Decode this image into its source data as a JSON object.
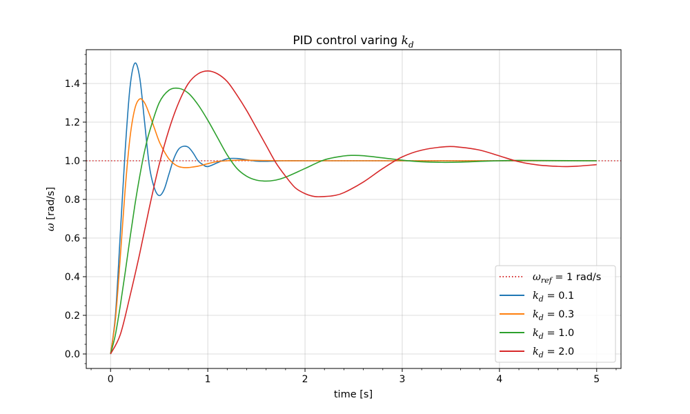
{
  "colors": {
    "ref": "#d62728",
    "s1": "#1f77b4",
    "s2": "#ff7f0e",
    "s3": "#2ca02c",
    "s4": "#d62728"
  },
  "chart_data": {
    "type": "line",
    "title_prefix": "PID control varing ",
    "title_var": "k",
    "title_sub": "d",
    "xlabel": "time [s]",
    "ylabel_symbol": "ω",
    "ylabel_unit": " [rad/s]",
    "xlim": [
      -0.25,
      5.25
    ],
    "ylim": [
      -0.075,
      1.575
    ],
    "x_ticks": [
      0,
      1,
      2,
      3,
      4,
      5
    ],
    "x_tick_labels": [
      "0",
      "1",
      "2",
      "3",
      "4",
      "5"
    ],
    "y_ticks": [
      0.0,
      0.2,
      0.4,
      0.6,
      0.8,
      1.0,
      1.2,
      1.4
    ],
    "y_tick_labels": [
      "0.0",
      "0.2",
      "0.4",
      "0.6",
      "0.8",
      "1.0",
      "1.2",
      "1.4"
    ],
    "grid": true,
    "legend_position": "lower-right",
    "reference": {
      "value": 1.0,
      "style": "dotted",
      "label_symbol": "ω",
      "label_sub": "ref",
      "label_rest": " = 1 rad/s"
    },
    "series": [
      {
        "label_symbol": "k",
        "label_sub": "d",
        "label_rest": " = 0.1",
        "x": [
          0,
          0.05,
          0.1,
          0.15,
          0.2,
          0.25,
          0.3,
          0.35,
          0.4,
          0.45,
          0.5,
          0.55,
          0.6,
          0.65,
          0.7,
          0.75,
          0.8,
          0.85,
          0.9,
          0.95,
          1.0,
          1.1,
          1.2,
          1.3,
          1.4,
          1.5,
          1.6,
          1.8,
          2.0,
          2.5,
          3.0,
          3.5,
          4.0,
          4.5,
          5.0
        ],
        "y": [
          0,
          0.2,
          0.62,
          1.05,
          1.38,
          1.505,
          1.43,
          1.2,
          0.97,
          0.86,
          0.82,
          0.85,
          0.93,
          1.01,
          1.06,
          1.075,
          1.07,
          1.04,
          1.0,
          0.98,
          0.97,
          0.99,
          1.01,
          1.012,
          1.005,
          0.998,
          0.997,
          1.0,
          1.0,
          1.0,
          1.0,
          1.0,
          1.0,
          1.0,
          1.0
        ]
      },
      {
        "label_symbol": "k",
        "label_sub": "d",
        "label_rest": " = 0.3",
        "x": [
          0,
          0.05,
          0.1,
          0.15,
          0.2,
          0.25,
          0.3,
          0.35,
          0.4,
          0.45,
          0.5,
          0.55,
          0.6,
          0.65,
          0.7,
          0.75,
          0.8,
          0.85,
          0.9,
          0.95,
          1.0,
          1.1,
          1.2,
          1.3,
          1.4,
          1.6,
          1.8,
          2.0,
          2.5,
          3.0,
          3.5,
          4.0,
          4.5,
          5.0
        ],
        "y": [
          0,
          0.18,
          0.5,
          0.85,
          1.12,
          1.27,
          1.32,
          1.3,
          1.24,
          1.17,
          1.1,
          1.05,
          1.01,
          0.985,
          0.97,
          0.965,
          0.965,
          0.968,
          0.972,
          0.978,
          0.985,
          0.996,
          1.0,
          1.003,
          1.003,
          1.001,
          1.0,
          1.0,
          1.0,
          1.0,
          1.0,
          1.0,
          1.0,
          1.0
        ]
      },
      {
        "label_symbol": "k",
        "label_sub": "d",
        "label_rest": " = 1.0",
        "x": [
          0,
          0.05,
          0.1,
          0.15,
          0.2,
          0.25,
          0.3,
          0.35,
          0.4,
          0.5,
          0.6,
          0.7,
          0.8,
          0.9,
          1.0,
          1.1,
          1.2,
          1.3,
          1.4,
          1.5,
          1.6,
          1.7,
          1.8,
          2.0,
          2.2,
          2.4,
          2.5,
          2.6,
          2.8,
          3.0,
          3.2,
          3.4,
          3.6,
          3.8,
          4.0,
          4.2,
          4.5,
          5.0
        ],
        "y": [
          0,
          0.1,
          0.25,
          0.42,
          0.6,
          0.77,
          0.92,
          1.05,
          1.15,
          1.3,
          1.365,
          1.375,
          1.35,
          1.29,
          1.21,
          1.12,
          1.03,
          0.96,
          0.92,
          0.9,
          0.895,
          0.9,
          0.915,
          0.96,
          1.005,
          1.025,
          1.028,
          1.026,
          1.015,
          1.003,
          0.995,
          0.992,
          0.993,
          0.997,
          1.0,
          1.002,
          1.001,
          1.0
        ]
      },
      {
        "label_symbol": "k",
        "label_sub": "d",
        "label_rest": " = 2.0",
        "x": [
          0,
          0.1,
          0.2,
          0.3,
          0.4,
          0.5,
          0.6,
          0.7,
          0.8,
          0.9,
          1.0,
          1.1,
          1.2,
          1.3,
          1.4,
          1.5,
          1.6,
          1.7,
          1.8,
          1.9,
          2.0,
          2.1,
          2.2,
          2.3,
          2.4,
          2.6,
          2.8,
          3.0,
          3.2,
          3.45,
          3.6,
          3.8,
          4.0,
          4.2,
          4.4,
          4.6,
          4.7,
          4.8,
          5.0
        ],
        "y": [
          0,
          0.1,
          0.3,
          0.52,
          0.76,
          0.98,
          1.16,
          1.3,
          1.4,
          1.45,
          1.465,
          1.45,
          1.41,
          1.34,
          1.26,
          1.17,
          1.08,
          0.99,
          0.92,
          0.86,
          0.83,
          0.815,
          0.815,
          0.82,
          0.835,
          0.89,
          0.96,
          1.02,
          1.055,
          1.073,
          1.07,
          1.055,
          1.025,
          0.995,
          0.978,
          0.971,
          0.97,
          0.972,
          0.98
        ]
      }
    ]
  }
}
